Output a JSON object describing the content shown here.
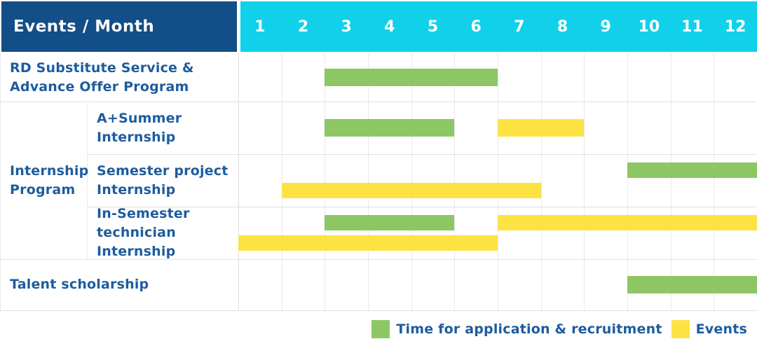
{
  "colors": {
    "header_bg": "#124e87",
    "months_bg": "#10d1e9",
    "label_text": "#1d5c9e",
    "green": "#8cc764",
    "yellow": "#fde244",
    "grid_light": "#eaeaea",
    "grid_dark": "#e0e0e0"
  },
  "header": {
    "label": "Events / Month",
    "months": [
      "1",
      "2",
      "3",
      "4",
      "5",
      "6",
      "7",
      "8",
      "9",
      "10",
      "11",
      "12"
    ]
  },
  "legend": {
    "items": [
      {
        "label": "Time for application & recruitment",
        "color": "green"
      },
      {
        "label": "Events",
        "color": "yellow"
      }
    ]
  },
  "chart_data": {
    "type": "gantt",
    "x_unit": "month",
    "x_range": [
      1,
      12
    ],
    "series_meaning": {
      "green": "Time for application & recruitment",
      "yellow": "Events"
    },
    "groups": [
      {
        "label_lines": [
          "Internship",
          "Program"
        ],
        "label": "Internship Program",
        "row_start": 1,
        "row_end": 3
      }
    ],
    "rows": [
      {
        "label": "RD Substitute Service & Advance Offer Program",
        "label_lines": [
          "RD Substitute Service &",
          "Advance Offer Program"
        ],
        "group": "",
        "bars": [
          {
            "color": "green",
            "start_month": 3,
            "end_month": 6,
            "lane": "center"
          }
        ]
      },
      {
        "label": "A+Summer Internship",
        "label_lines": [
          "A+Summer",
          "Internship"
        ],
        "group": "Internship Program",
        "bars": [
          {
            "color": "green",
            "start_month": 3,
            "end_month": 5,
            "lane": "center"
          },
          {
            "color": "yellow",
            "start_month": 7,
            "end_month": 8,
            "lane": "center"
          }
        ]
      },
      {
        "label": "Semester project Internship",
        "label_lines": [
          "Semester project",
          "Internship"
        ],
        "group": "Internship Program",
        "bars": [
          {
            "color": "green",
            "start_month": 10,
            "end_month": 12,
            "lane": "top"
          },
          {
            "color": "yellow",
            "start_month": 2,
            "end_month": 7,
            "lane": "bottom"
          }
        ]
      },
      {
        "label": "In-Semester technician Internship",
        "label_lines": [
          "In-Semester",
          "technician Internship"
        ],
        "group": "Internship Program",
        "bars": [
          {
            "color": "green",
            "start_month": 3,
            "end_month": 5,
            "lane": "top"
          },
          {
            "color": "yellow",
            "start_month": 7,
            "end_month": 12,
            "lane": "top"
          },
          {
            "color": "yellow",
            "start_month": 1,
            "end_month": 6,
            "lane": "bottom"
          }
        ]
      },
      {
        "label": "Talent scholarship",
        "label_lines": [
          "Talent scholarship"
        ],
        "group": "",
        "bars": [
          {
            "color": "green",
            "start_month": 10,
            "end_month": 12,
            "lane": "center"
          }
        ]
      }
    ]
  }
}
